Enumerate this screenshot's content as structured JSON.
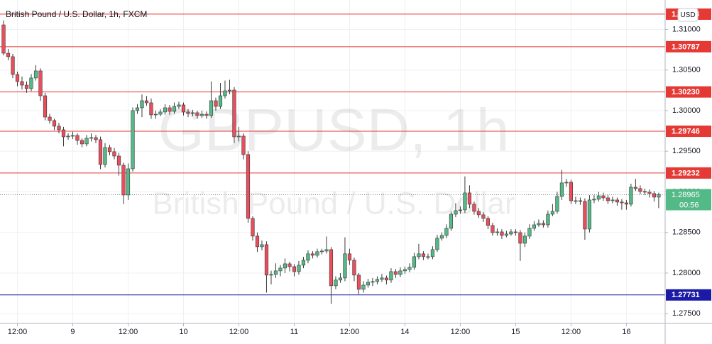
{
  "chart_data": {
    "type": "candlestick",
    "title": "British Pound / U.S. Dollar, 1h, FXCM",
    "watermark": "GBPUSD, 1h",
    "watermark_subtitle": "British Pound / U.S. Dollar",
    "currency": "USD",
    "countdown": "00:56",
    "up_color": "#53b987",
    "down_color": "#eb4d5c",
    "wick_color": "#3a3a3a",
    "grid": true,
    "xlim": [
      -0.77,
      143.4
    ],
    "xticks": [
      {
        "value": 3,
        "label": "12:00"
      },
      {
        "value": 15,
        "label": "9"
      },
      {
        "value": 27,
        "label": "12:00"
      },
      {
        "value": 39,
        "label": "10"
      },
      {
        "value": 51,
        "label": "12:00"
      },
      {
        "value": 63,
        "label": "11"
      },
      {
        "value": 75,
        "label": "12:00"
      },
      {
        "value": 87,
        "label": "14"
      },
      {
        "value": 99,
        "label": "12:00"
      },
      {
        "value": 111,
        "label": "15"
      },
      {
        "value": 123,
        "label": "12:00"
      },
      {
        "value": 135,
        "label": "16"
      }
    ],
    "ylim": [
      1.2738,
      1.31362
    ],
    "yticks": [
      {
        "value": 1.31,
        "label": "1.31000"
      },
      {
        "value": 1.305,
        "label": "1.30500"
      },
      {
        "value": 1.3,
        "label": "1.30000"
      },
      {
        "value": 1.295,
        "label": "1.29500"
      },
      {
        "value": 1.29,
        "label": "1.29000"
      },
      {
        "value": 1.285,
        "label": "1.28500"
      },
      {
        "value": 1.28,
        "label": "1.28000"
      },
      {
        "value": 1.275,
        "label": "1.27500"
      }
    ],
    "levels": [
      {
        "value": 1.31188,
        "color": "#e53935"
      },
      {
        "value": 1.30787,
        "color": "#e53935"
      },
      {
        "value": 1.3023,
        "label": "1.30230",
        "color": "#e53935"
      },
      {
        "value": 1.29746,
        "color": "#e53935"
      },
      {
        "value": 1.29232,
        "color": "#e53935"
      },
      {
        "value": 1.27731,
        "color": "#1a1aa6"
      }
    ],
    "last_price": 1.28965,
    "last_price_color": "#53b987",
    "ohlc": [
      [
        1.31056,
        1.3111,
        1.3068,
        1.30707
      ],
      [
        1.30707,
        1.3076,
        1.3062,
        1.30664
      ],
      [
        1.30664,
        1.307,
        1.304,
        1.30445
      ],
      [
        1.30445,
        1.3048,
        1.303,
        1.30358
      ],
      [
        1.30358,
        1.3042,
        1.3026,
        1.30314
      ],
      [
        1.30314,
        1.3036,
        1.3022,
        1.30271
      ],
      [
        1.30271,
        1.3045,
        1.3024,
        1.30402
      ],
      [
        1.30402,
        1.3056,
        1.3037,
        1.30489
      ],
      [
        1.30489,
        1.3052,
        1.3012,
        1.30183
      ],
      [
        1.30183,
        1.3022,
        1.2988,
        1.29921
      ],
      [
        1.29921,
        1.2996,
        1.2984,
        1.29878
      ],
      [
        1.29878,
        1.299,
        1.2976,
        1.29808
      ],
      [
        1.29808,
        1.2985,
        1.2972,
        1.29764
      ],
      [
        1.29764,
        1.298,
        1.2956,
        1.29677
      ],
      [
        1.29677,
        1.2972,
        1.2964,
        1.29686
      ],
      [
        1.29686,
        1.2974,
        1.2965,
        1.29694
      ],
      [
        1.29694,
        1.2972,
        1.2958,
        1.29633
      ],
      [
        1.29633,
        1.2966,
        1.2955,
        1.2959
      ],
      [
        1.2959,
        1.297,
        1.2956,
        1.2966
      ],
      [
        1.2966,
        1.2972,
        1.2962,
        1.29668
      ],
      [
        1.29668,
        1.297,
        1.296,
        1.29642
      ],
      [
        1.29642,
        1.2968,
        1.2928,
        1.29337
      ],
      [
        1.29337,
        1.296,
        1.293,
        1.29546
      ],
      [
        1.29546,
        1.2958,
        1.2945,
        1.29494
      ],
      [
        1.29494,
        1.2954,
        1.294,
        1.29441
      ],
      [
        1.29441,
        1.2948,
        1.292,
        1.29328
      ],
      [
        1.29328,
        1.2936,
        1.2885,
        1.28961
      ],
      [
        1.28961,
        1.2935,
        1.289,
        1.29284
      ],
      [
        1.29284,
        1.3004,
        1.2925,
        1.3
      ],
      [
        1.3,
        1.3008,
        1.2996,
        1.30035
      ],
      [
        1.30035,
        1.302,
        1.2992,
        1.30122
      ],
      [
        1.30122,
        1.3018,
        1.3006,
        1.30096
      ],
      [
        1.30096,
        1.3015,
        1.299,
        1.29948
      ],
      [
        1.29948,
        1.3,
        1.299,
        1.29956
      ],
      [
        1.29956,
        1.3002,
        1.2993,
        1.29983
      ],
      [
        1.29983,
        1.3008,
        1.2995,
        1.30035
      ],
      [
        1.30035,
        1.3007,
        1.2995,
        1.29991
      ],
      [
        1.29991,
        1.301,
        1.2996,
        1.30052
      ],
      [
        1.30052,
        1.3011,
        1.3002,
        1.3007
      ],
      [
        1.3007,
        1.301,
        1.2994,
        1.29983
      ],
      [
        1.29983,
        1.3002,
        1.2992,
        1.29965
      ],
      [
        1.29965,
        1.3001,
        1.2993,
        1.29974
      ],
      [
        1.29974,
        1.3,
        1.299,
        1.29939
      ],
      [
        1.29939,
        1.3,
        1.2991,
        1.29956
      ],
      [
        1.29956,
        1.2999,
        1.299,
        1.29939
      ],
      [
        1.29939,
        1.3036,
        1.2991,
        1.30122
      ],
      [
        1.30122,
        1.3016,
        1.3,
        1.30052
      ],
      [
        1.30052,
        1.3034,
        1.3002,
        1.30183
      ],
      [
        1.30183,
        1.3037,
        1.3015,
        1.30244
      ],
      [
        1.30244,
        1.3038,
        1.302,
        1.30253
      ],
      [
        1.30253,
        1.3029,
        1.296,
        1.29677
      ],
      [
        1.29677,
        1.298,
        1.2962,
        1.29686
      ],
      [
        1.29686,
        1.2972,
        1.294,
        1.29459
      ],
      [
        1.29459,
        1.295,
        1.2862,
        1.28673
      ],
      [
        1.28673,
        1.287,
        1.284,
        1.28455
      ],
      [
        1.28455,
        1.285,
        1.2826,
        1.28324
      ],
      [
        1.28324,
        1.284,
        1.2828,
        1.2835
      ],
      [
        1.2835,
        1.2839,
        1.2776,
        1.27975
      ],
      [
        1.27975,
        1.2803,
        1.2786,
        1.27983
      ],
      [
        1.27983,
        1.2812,
        1.2794,
        1.28027
      ],
      [
        1.28027,
        1.281,
        1.2796,
        1.28062
      ],
      [
        1.28062,
        1.2818,
        1.28,
        1.28114
      ],
      [
        1.28114,
        1.2814,
        1.2802,
        1.28079
      ],
      [
        1.28079,
        1.2811,
        1.2796,
        1.28018
      ],
      [
        1.28018,
        1.2815,
        1.2798,
        1.28097
      ],
      [
        1.28097,
        1.282,
        1.2806,
        1.28158
      ],
      [
        1.28158,
        1.2828,
        1.2812,
        1.28237
      ],
      [
        1.28237,
        1.2827,
        1.2818,
        1.28219
      ],
      [
        1.28219,
        1.283,
        1.2819,
        1.28263
      ],
      [
        1.28263,
        1.283,
        1.2823,
        1.28271
      ],
      [
        1.28271,
        1.2845,
        1.2824,
        1.28289
      ],
      [
        1.28289,
        1.2832,
        1.2762,
        1.27844
      ],
      [
        1.27844,
        1.2796,
        1.278,
        1.27914
      ],
      [
        1.27914,
        1.28,
        1.2788,
        1.2794
      ],
      [
        1.2794,
        1.2844,
        1.279,
        1.28237
      ],
      [
        1.28237,
        1.283,
        1.281,
        1.28158
      ],
      [
        1.28158,
        1.2819,
        1.279,
        1.27975
      ],
      [
        1.27975,
        1.28,
        1.2774,
        1.278
      ],
      [
        1.278,
        1.279,
        1.2776,
        1.27852
      ],
      [
        1.27852,
        1.2793,
        1.2782,
        1.27887
      ],
      [
        1.27887,
        1.2794,
        1.2784,
        1.27896
      ],
      [
        1.27896,
        1.2796,
        1.2786,
        1.27922
      ],
      [
        1.27922,
        1.2799,
        1.2789,
        1.2794
      ],
      [
        1.2794,
        1.2797,
        1.2786,
        1.27914
      ],
      [
        1.27914,
        1.2806,
        1.2788,
        1.28018
      ],
      [
        1.28018,
        1.2805,
        1.2794,
        1.27983
      ],
      [
        1.27983,
        1.2807,
        1.2795,
        1.28027
      ],
      [
        1.28027,
        1.2808,
        1.2799,
        1.28044
      ],
      [
        1.28044,
        1.2812,
        1.2801,
        1.28071
      ],
      [
        1.28071,
        1.2825,
        1.2804,
        1.28202
      ],
      [
        1.28202,
        1.2836,
        1.2817,
        1.28237
      ],
      [
        1.28237,
        1.2827,
        1.2816,
        1.28202
      ],
      [
        1.28202,
        1.2824,
        1.2817,
        1.28202
      ],
      [
        1.28202,
        1.2833,
        1.2817,
        1.28289
      ],
      [
        1.28289,
        1.2847,
        1.2826,
        1.28429
      ],
      [
        1.28429,
        1.285,
        1.284,
        1.28464
      ],
      [
        1.28464,
        1.286,
        1.2843,
        1.28551
      ],
      [
        1.28551,
        1.2876,
        1.2852,
        1.28725
      ],
      [
        1.28725,
        1.2886,
        1.2869,
        1.28769
      ],
      [
        1.28769,
        1.2882,
        1.2873,
        1.28778
      ],
      [
        1.28778,
        1.2919,
        1.2874,
        1.28987
      ],
      [
        1.28987,
        1.2908,
        1.288,
        1.28848
      ],
      [
        1.28848,
        1.2888,
        1.2872,
        1.2876
      ],
      [
        1.2876,
        1.288,
        1.2868,
        1.28717
      ],
      [
        1.28717,
        1.2875,
        1.2863,
        1.28673
      ],
      [
        1.28673,
        1.287,
        1.2854,
        1.28586
      ],
      [
        1.28586,
        1.2862,
        1.2846,
        1.28498
      ],
      [
        1.28498,
        1.2855,
        1.2846,
        1.28507
      ],
      [
        1.28507,
        1.2854,
        1.2842,
        1.28464
      ],
      [
        1.28464,
        1.2852,
        1.2844,
        1.28481
      ],
      [
        1.28481,
        1.2854,
        1.2846,
        1.28507
      ],
      [
        1.28507,
        1.2854,
        1.2846,
        1.28498
      ],
      [
        1.28498,
        1.2853,
        1.2815,
        1.28367
      ],
      [
        1.28367,
        1.285,
        1.2832,
        1.28455
      ],
      [
        1.28455,
        1.286,
        1.2842,
        1.28551
      ],
      [
        1.28551,
        1.2864,
        1.2852,
        1.28594
      ],
      [
        1.28594,
        1.2866,
        1.2857,
        1.28612
      ],
      [
        1.28612,
        1.2865,
        1.2856,
        1.28594
      ],
      [
        1.28594,
        1.2877,
        1.2856,
        1.28725
      ],
      [
        1.28725,
        1.2885,
        1.287,
        1.2876
      ],
      [
        1.2876,
        1.29,
        1.2873,
        1.28944
      ],
      [
        1.28944,
        1.2927,
        1.289,
        1.2911
      ],
      [
        1.2911,
        1.2916,
        1.2906,
        1.29118
      ],
      [
        1.29118,
        1.2915,
        1.2885,
        1.28891
      ],
      [
        1.28891,
        1.2894,
        1.2885,
        1.28891
      ],
      [
        1.28891,
        1.2893,
        1.2884,
        1.28882
      ],
      [
        1.28882,
        1.2892,
        1.2841,
        1.28542
      ],
      [
        1.28542,
        1.2896,
        1.285,
        1.289
      ],
      [
        1.289,
        1.2896,
        1.2886,
        1.28909
      ],
      [
        1.28909,
        1.29,
        1.2888,
        1.28952
      ],
      [
        1.28952,
        1.2899,
        1.2889,
        1.28926
      ],
      [
        1.28926,
        1.2896,
        1.2885,
        1.28891
      ],
      [
        1.28891,
        1.2894,
        1.2886,
        1.289
      ],
      [
        1.289,
        1.2893,
        1.2883,
        1.28874
      ],
      [
        1.28874,
        1.2891,
        1.2878,
        1.28865
      ],
      [
        1.28865,
        1.289,
        1.2878,
        1.28848
      ],
      [
        1.28848,
        1.291,
        1.2882,
        1.29057
      ],
      [
        1.29057,
        1.2916,
        1.2901,
        1.2904
      ],
      [
        1.2904,
        1.2908,
        1.2897,
        1.29005
      ],
      [
        1.29005,
        1.2904,
        1.2896,
        1.28996
      ],
      [
        1.28996,
        1.2903,
        1.2893,
        1.28979
      ],
      [
        1.28979,
        1.2901,
        1.2888,
        1.28935
      ],
      [
        1.28935,
        1.2899,
        1.288,
        1.28965
      ]
    ]
  }
}
